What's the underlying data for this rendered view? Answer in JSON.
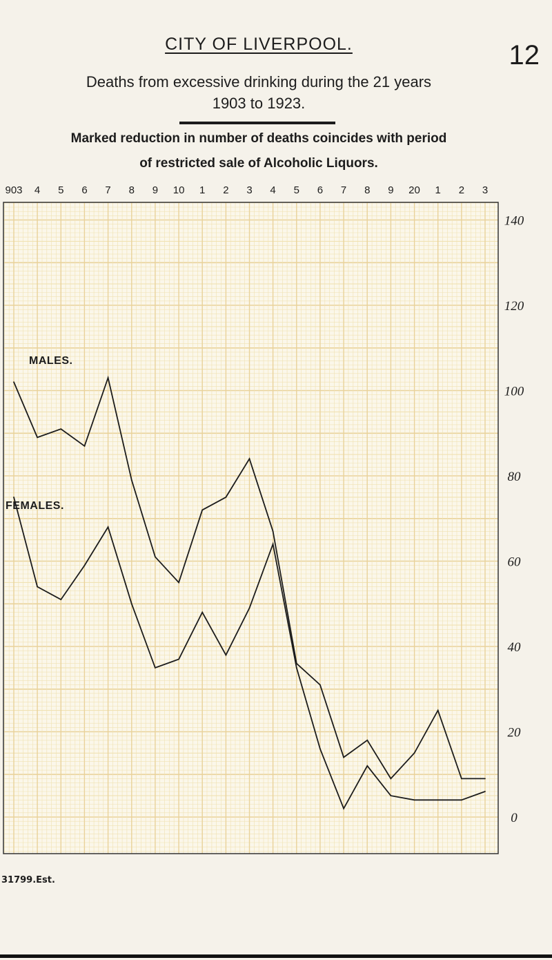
{
  "page": {
    "title": "CITY OF LIVERPOOL.",
    "page_number": "12",
    "heading_line1": "Deaths from excessive drinking during the 21 years",
    "heading_line2": "1903 to 1923.",
    "subheading_line1": "Marked reduction in number of deaths coincides with period",
    "subheading_line2": "of restricted sale of Alcoholic Liquors.",
    "footer_note": "31799.Est."
  },
  "chart_data": {
    "type": "line",
    "title": "Deaths from excessive drinking during the 21 years 1903 to 1923.",
    "x": [
      1903,
      1904,
      1905,
      1906,
      1907,
      1908,
      1909,
      1910,
      1911,
      1912,
      1913,
      1914,
      1915,
      1916,
      1917,
      1918,
      1919,
      1920,
      1921,
      1922,
      1923
    ],
    "x_tick_labels": [
      "903",
      "4",
      "5",
      "6",
      "7",
      "8",
      "9",
      "10",
      "1",
      "2",
      "3",
      "4",
      "5",
      "6",
      "7",
      "8",
      "9",
      "20",
      "1",
      "2",
      "3"
    ],
    "xlim": [
      1903,
      1923
    ],
    "ylim": [
      0,
      150
    ],
    "y_ticks": [
      0,
      20,
      40,
      60,
      80,
      100,
      120,
      140
    ],
    "y_tick_labels": [
      "0",
      "20",
      "40",
      "60",
      "80",
      "100",
      "120",
      "140"
    ],
    "series": [
      {
        "name": "MALES.",
        "values": [
          102,
          89,
          91,
          87,
          103,
          79,
          61,
          55,
          72,
          75,
          84,
          67,
          36,
          31,
          14,
          18,
          9,
          15,
          25,
          9,
          9
        ]
      },
      {
        "name": "FEMALES.",
        "values": [
          75,
          54,
          51,
          59,
          68,
          50,
          35,
          37,
          48,
          38,
          49,
          64,
          35,
          16,
          2,
          12,
          5,
          4,
          4,
          4,
          6
        ]
      }
    ],
    "grid": true,
    "legend": "inline labels",
    "colors": {
      "grid_minor": "#f0e2b2",
      "grid_major": "#e9d29a",
      "line": "#1c1c1c",
      "paper": "#f5f2ea"
    }
  }
}
